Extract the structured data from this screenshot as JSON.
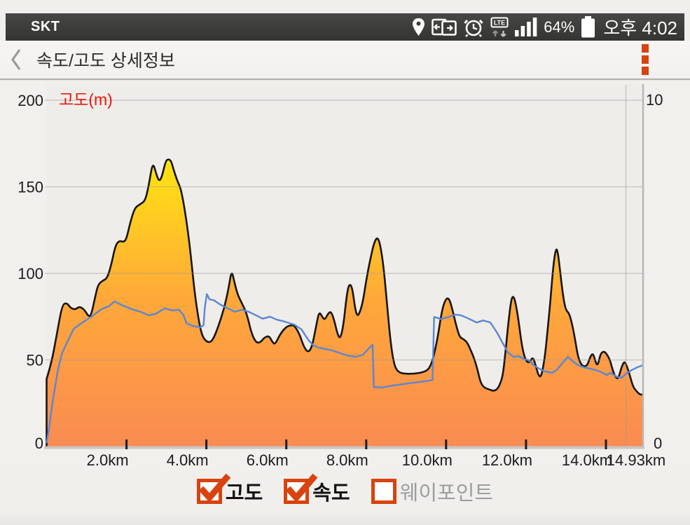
{
  "status_bar": {
    "carrier": "SKT",
    "battery_percent": "64%",
    "time": "오후 4:02",
    "lte_label": "LTE"
  },
  "header": {
    "title": "속도/고도 상세정보"
  },
  "chart_data": {
    "type": "area+line",
    "left_axis": {
      "label": "고도(m)",
      "tick_values": [
        0,
        50,
        100,
        150,
        200
      ],
      "range": [
        0,
        200
      ]
    },
    "right_axis": {
      "tick_values": [
        0,
        10
      ],
      "range": [
        0,
        10
      ]
    },
    "x_axis": {
      "labels": [
        "2.0km",
        "4.0km",
        "6.0km",
        "8.0km",
        "10.0km",
        "12.0km",
        "14.0km",
        "14.93km"
      ],
      "tick_km": [
        2,
        4,
        6,
        8,
        10,
        12,
        14
      ],
      "minor_vline_km": 14.5,
      "range_km": [
        0,
        14.93
      ]
    },
    "series": [
      {
        "name": "고도",
        "type": "area",
        "axis": "left",
        "points": [
          [
            0,
            39
          ],
          [
            0.11,
            47
          ],
          [
            0.25,
            64
          ],
          [
            0.39,
            82
          ],
          [
            0.51,
            83
          ],
          [
            0.6,
            80
          ],
          [
            0.72,
            79
          ],
          [
            0.82,
            81
          ],
          [
            0.95,
            79
          ],
          [
            1.05,
            75
          ],
          [
            1.12,
            76
          ],
          [
            1.23,
            88
          ],
          [
            1.3,
            94
          ],
          [
            1.42,
            96
          ],
          [
            1.51,
            97
          ],
          [
            1.61,
            104
          ],
          [
            1.72,
            116
          ],
          [
            1.82,
            119
          ],
          [
            1.93,
            118
          ],
          [
            2.0,
            120
          ],
          [
            2.1,
            130
          ],
          [
            2.21,
            138
          ],
          [
            2.35,
            140
          ],
          [
            2.47,
            142
          ],
          [
            2.56,
            151
          ],
          [
            2.63,
            161
          ],
          [
            2.68,
            163
          ],
          [
            2.75,
            157
          ],
          [
            2.82,
            153
          ],
          [
            2.89,
            156
          ],
          [
            2.98,
            165
          ],
          [
            3.05,
            166
          ],
          [
            3.12,
            165
          ],
          [
            3.19,
            159
          ],
          [
            3.28,
            153
          ],
          [
            3.36,
            149
          ],
          [
            3.45,
            138
          ],
          [
            3.54,
            124
          ],
          [
            3.63,
            106
          ],
          [
            3.71,
            88
          ],
          [
            3.8,
            74
          ],
          [
            3.87,
            66
          ],
          [
            3.94,
            62
          ],
          [
            4.05,
            60
          ],
          [
            4.15,
            61
          ],
          [
            4.28,
            68
          ],
          [
            4.45,
            80
          ],
          [
            4.56,
            92
          ],
          [
            4.63,
            102
          ],
          [
            4.7,
            95
          ],
          [
            4.78,
            88
          ],
          [
            4.84,
            85
          ],
          [
            5.01,
            77
          ],
          [
            5.12,
            66
          ],
          [
            5.24,
            60
          ],
          [
            5.35,
            60
          ],
          [
            5.45,
            63
          ],
          [
            5.57,
            64
          ],
          [
            5.66,
            60
          ],
          [
            5.72,
            59
          ],
          [
            5.85,
            65
          ],
          [
            5.99,
            69
          ],
          [
            6.1,
            70
          ],
          [
            6.2,
            70
          ],
          [
            6.33,
            65
          ],
          [
            6.43,
            58
          ],
          [
            6.55,
            54
          ],
          [
            6.65,
            58
          ],
          [
            6.75,
            70
          ],
          [
            6.82,
            78
          ],
          [
            6.9,
            75
          ],
          [
            6.96,
            73
          ],
          [
            7.05,
            77
          ],
          [
            7.12,
            78
          ],
          [
            7.2,
            73
          ],
          [
            7.28,
            65
          ],
          [
            7.35,
            62
          ],
          [
            7.43,
            70
          ],
          [
            7.52,
            89
          ],
          [
            7.58,
            94
          ],
          [
            7.65,
            92
          ],
          [
            7.72,
            80
          ],
          [
            7.78,
            75
          ],
          [
            7.85,
            78
          ],
          [
            7.92,
            84
          ],
          [
            8.0,
            96
          ],
          [
            8.1,
            108
          ],
          [
            8.2,
            118
          ],
          [
            8.28,
            121
          ],
          [
            8.35,
            117
          ],
          [
            8.44,
            103
          ],
          [
            8.53,
            80
          ],
          [
            8.61,
            60
          ],
          [
            8.7,
            47
          ],
          [
            8.8,
            43
          ],
          [
            8.95,
            42
          ],
          [
            9.2,
            42
          ],
          [
            9.45,
            43
          ],
          [
            9.58,
            45
          ],
          [
            9.68,
            51
          ],
          [
            9.79,
            63
          ],
          [
            9.89,
            78
          ],
          [
            9.98,
            85
          ],
          [
            10.07,
            86
          ],
          [
            10.16,
            79
          ],
          [
            10.25,
            70
          ],
          [
            10.34,
            63
          ],
          [
            10.44,
            62
          ],
          [
            10.53,
            60
          ],
          [
            10.61,
            56
          ],
          [
            10.7,
            51
          ],
          [
            10.78,
            45
          ],
          [
            10.86,
            37
          ],
          [
            10.95,
            34
          ],
          [
            11.08,
            33
          ],
          [
            11.18,
            32
          ],
          [
            11.28,
            33
          ],
          [
            11.35,
            36
          ],
          [
            11.42,
            41
          ],
          [
            11.48,
            53
          ],
          [
            11.56,
            72
          ],
          [
            11.63,
            85
          ],
          [
            11.68,
            87
          ],
          [
            11.73,
            84
          ],
          [
            11.8,
            75
          ],
          [
            11.89,
            59
          ],
          [
            11.98,
            50
          ],
          [
            12.08,
            48
          ],
          [
            12.17,
            52
          ],
          [
            12.24,
            47
          ],
          [
            12.31,
            41
          ],
          [
            12.38,
            40
          ],
          [
            12.47,
            51
          ],
          [
            12.54,
            67
          ],
          [
            12.61,
            84
          ],
          [
            12.68,
            104
          ],
          [
            12.75,
            115
          ],
          [
            12.8,
            112
          ],
          [
            12.85,
            102
          ],
          [
            12.92,
            88
          ],
          [
            12.99,
            79
          ],
          [
            13.08,
            77
          ],
          [
            13.15,
            71
          ],
          [
            13.22,
            63
          ],
          [
            13.29,
            53
          ],
          [
            13.36,
            48
          ],
          [
            13.45,
            46
          ],
          [
            13.54,
            47
          ],
          [
            13.61,
            52
          ],
          [
            13.68,
            54
          ],
          [
            13.75,
            48
          ],
          [
            13.8,
            47
          ],
          [
            13.87,
            54
          ],
          [
            13.96,
            55
          ],
          [
            14.03,
            53
          ],
          [
            14.1,
            50
          ],
          [
            14.17,
            44
          ],
          [
            14.24,
            40
          ],
          [
            14.31,
            39
          ],
          [
            14.38,
            45
          ],
          [
            14.45,
            49
          ],
          [
            14.5,
            48
          ],
          [
            14.59,
            42
          ],
          [
            14.67,
            35
          ],
          [
            14.76,
            32
          ],
          [
            14.85,
            30
          ],
          [
            14.93,
            30
          ]
        ]
      },
      {
        "name": "속도",
        "type": "line",
        "axis": "right",
        "points": [
          [
            0,
            0.1
          ],
          [
            0.07,
            0.6
          ],
          [
            0.14,
            1.2
          ],
          [
            0.21,
            1.7
          ],
          [
            0.28,
            2.2
          ],
          [
            0.39,
            2.7
          ],
          [
            0.51,
            3.0
          ],
          [
            0.68,
            3.4
          ],
          [
            0.86,
            3.55
          ],
          [
            1.12,
            3.75
          ],
          [
            1.38,
            3.97
          ],
          [
            1.56,
            4.05
          ],
          [
            1.7,
            4.19
          ],
          [
            1.91,
            4.07
          ],
          [
            2.17,
            3.95
          ],
          [
            2.35,
            3.89
          ],
          [
            2.56,
            3.79
          ],
          [
            2.73,
            3.83
          ],
          [
            2.96,
            3.99
          ],
          [
            3.14,
            3.93
          ],
          [
            3.31,
            3.95
          ],
          [
            3.43,
            3.79
          ],
          [
            3.5,
            3.56
          ],
          [
            3.66,
            3.48
          ],
          [
            3.84,
            3.44
          ],
          [
            3.93,
            3.5
          ],
          [
            3.96,
            3.99
          ],
          [
            4.01,
            4.4
          ],
          [
            4.08,
            4.25
          ],
          [
            4.19,
            4.22
          ],
          [
            4.36,
            4.09
          ],
          [
            4.54,
            3.99
          ],
          [
            4.71,
            3.89
          ],
          [
            4.89,
            3.95
          ],
          [
            5.06,
            3.89
          ],
          [
            5.24,
            3.79
          ],
          [
            5.41,
            3.69
          ],
          [
            5.59,
            3.75
          ],
          [
            5.77,
            3.66
          ],
          [
            5.92,
            3.62
          ],
          [
            6.03,
            3.58
          ],
          [
            6.2,
            3.52
          ],
          [
            6.38,
            3.38
          ],
          [
            6.47,
            3.22
          ],
          [
            6.57,
            3.05
          ],
          [
            6.68,
            2.92
          ],
          [
            6.82,
            2.85
          ],
          [
            6.99,
            2.81
          ],
          [
            7.17,
            2.77
          ],
          [
            7.31,
            2.71
          ],
          [
            7.52,
            2.63
          ],
          [
            7.74,
            2.59
          ],
          [
            7.92,
            2.65
          ],
          [
            8.08,
            2.85
          ],
          [
            8.16,
            2.94
          ],
          [
            8.19,
            1.72
          ],
          [
            8.39,
            1.7
          ],
          [
            8.66,
            1.76
          ],
          [
            8.92,
            1.8
          ],
          [
            9.18,
            1.84
          ],
          [
            9.44,
            1.88
          ],
          [
            9.66,
            1.92
          ],
          [
            9.7,
            3.74
          ],
          [
            9.88,
            3.68
          ],
          [
            10.06,
            3.74
          ],
          [
            10.23,
            3.81
          ],
          [
            10.37,
            3.79
          ],
          [
            10.55,
            3.7
          ],
          [
            10.76,
            3.58
          ],
          [
            10.93,
            3.64
          ],
          [
            11.11,
            3.58
          ],
          [
            11.28,
            3.28
          ],
          [
            11.42,
            2.98
          ],
          [
            11.55,
            2.71
          ],
          [
            11.69,
            2.59
          ],
          [
            11.81,
            2.61
          ],
          [
            11.95,
            2.53
          ],
          [
            12.07,
            2.49
          ],
          [
            12.19,
            2.35
          ],
          [
            12.33,
            2.25
          ],
          [
            12.47,
            2.17
          ],
          [
            12.65,
            2.13
          ],
          [
            12.77,
            2.21
          ],
          [
            12.91,
            2.41
          ],
          [
            13.05,
            2.59
          ],
          [
            13.18,
            2.45
          ],
          [
            13.3,
            2.35
          ],
          [
            13.44,
            2.29
          ],
          [
            13.6,
            2.25
          ],
          [
            13.74,
            2.21
          ],
          [
            13.88,
            2.15
          ],
          [
            14.02,
            2.06
          ],
          [
            14.12,
            2.13
          ],
          [
            14.26,
            2.02
          ],
          [
            14.39,
            1.98
          ],
          [
            14.51,
            2.11
          ],
          [
            14.65,
            2.21
          ],
          [
            14.79,
            2.29
          ],
          [
            14.93,
            2.35
          ]
        ]
      }
    ],
    "colors": {
      "area_top": "#ffe70c",
      "area_upper": "#ffd51b",
      "area_mid": "#ffa83a",
      "area_bottom": "#f98b52",
      "area_outline": "#161616",
      "speed_line": "#5b86d3",
      "grid": "#9b9997",
      "axis": "#c9c6c4",
      "tick": "#1e1e1e",
      "text": "#1c1c1c",
      "alt_label_red": "#e8170e"
    }
  },
  "legend": {
    "checkbox_color": "#d8430f",
    "items": [
      {
        "label": "고도",
        "checked": true
      },
      {
        "label": "속도",
        "checked": true
      },
      {
        "label": "웨이포인트",
        "checked": false
      }
    ]
  }
}
